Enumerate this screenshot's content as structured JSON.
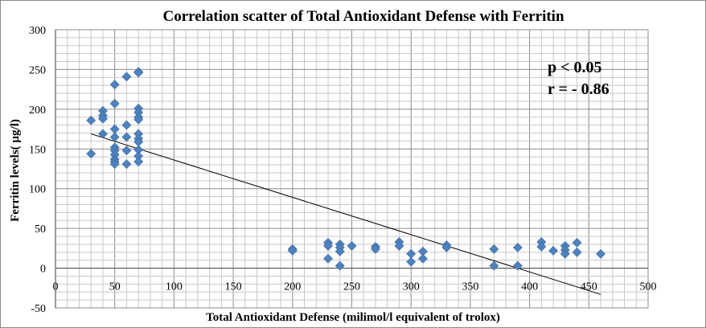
{
  "chart_data": {
    "type": "scatter",
    "title": "Correlation scatter of Total Antioxidant Defense with Ferritin",
    "xlabel": "Total Antioxidant Defense (milimol/l equivalent of trolox)",
    "ylabel": "Ferritin levels( µg/l)",
    "xlim": [
      0,
      500
    ],
    "ylim": [
      -50,
      300
    ],
    "x_ticks": [
      "0",
      "50",
      "100",
      "150",
      "200",
      "250",
      "300",
      "350",
      "400",
      "450",
      "500"
    ],
    "y_ticks": [
      "300",
      "250",
      "200",
      "150",
      "100",
      "50",
      "0",
      "-50"
    ],
    "grid": true,
    "legend": "none",
    "marker_color": "#4f81bd",
    "trendline": {
      "x": [
        30,
        460
      ],
      "y": [
        169,
        -33
      ]
    },
    "annotations": [
      "p < 0.05",
      "r = - 0.86"
    ],
    "points": [
      {
        "x": 30,
        "y": 186
      },
      {
        "x": 30,
        "y": 144
      },
      {
        "x": 40,
        "y": 198
      },
      {
        "x": 40,
        "y": 192
      },
      {
        "x": 40,
        "y": 188
      },
      {
        "x": 40,
        "y": 169
      },
      {
        "x": 50,
        "y": 231
      },
      {
        "x": 50,
        "y": 207
      },
      {
        "x": 50,
        "y": 175
      },
      {
        "x": 50,
        "y": 165
      },
      {
        "x": 50,
        "y": 152
      },
      {
        "x": 50,
        "y": 148
      },
      {
        "x": 50,
        "y": 143
      },
      {
        "x": 50,
        "y": 137
      },
      {
        "x": 50,
        "y": 134
      },
      {
        "x": 50,
        "y": 131
      },
      {
        "x": 60,
        "y": 241
      },
      {
        "x": 60,
        "y": 180
      },
      {
        "x": 60,
        "y": 165
      },
      {
        "x": 60,
        "y": 148
      },
      {
        "x": 60,
        "y": 131
      },
      {
        "x": 70,
        "y": 247
      },
      {
        "x": 70,
        "y": 246
      },
      {
        "x": 70,
        "y": 201
      },
      {
        "x": 70,
        "y": 196
      },
      {
        "x": 70,
        "y": 190
      },
      {
        "x": 70,
        "y": 187
      },
      {
        "x": 70,
        "y": 169
      },
      {
        "x": 70,
        "y": 163
      },
      {
        "x": 70,
        "y": 159
      },
      {
        "x": 70,
        "y": 149
      },
      {
        "x": 70,
        "y": 141
      },
      {
        "x": 70,
        "y": 134
      },
      {
        "x": 200,
        "y": 24
      },
      {
        "x": 200,
        "y": 22
      },
      {
        "x": 230,
        "y": 32
      },
      {
        "x": 230,
        "y": 28
      },
      {
        "x": 230,
        "y": 12
      },
      {
        "x": 240,
        "y": 30
      },
      {
        "x": 240,
        "y": 26
      },
      {
        "x": 240,
        "y": 21
      },
      {
        "x": 240,
        "y": 3
      },
      {
        "x": 250,
        "y": 28
      },
      {
        "x": 270,
        "y": 27
      },
      {
        "x": 270,
        "y": 24
      },
      {
        "x": 290,
        "y": 33
      },
      {
        "x": 290,
        "y": 28
      },
      {
        "x": 300,
        "y": 18
      },
      {
        "x": 300,
        "y": 8
      },
      {
        "x": 310,
        "y": 21
      },
      {
        "x": 310,
        "y": 12
      },
      {
        "x": 330,
        "y": 29
      },
      {
        "x": 330,
        "y": 26
      },
      {
        "x": 370,
        "y": 24
      },
      {
        "x": 370,
        "y": 3
      },
      {
        "x": 390,
        "y": 26
      },
      {
        "x": 390,
        "y": 3
      },
      {
        "x": 410,
        "y": 33
      },
      {
        "x": 410,
        "y": 27
      },
      {
        "x": 420,
        "y": 22
      },
      {
        "x": 430,
        "y": 28
      },
      {
        "x": 430,
        "y": 23
      },
      {
        "x": 430,
        "y": 18
      },
      {
        "x": 440,
        "y": 32
      },
      {
        "x": 440,
        "y": 20
      },
      {
        "x": 460,
        "y": 18
      }
    ]
  }
}
